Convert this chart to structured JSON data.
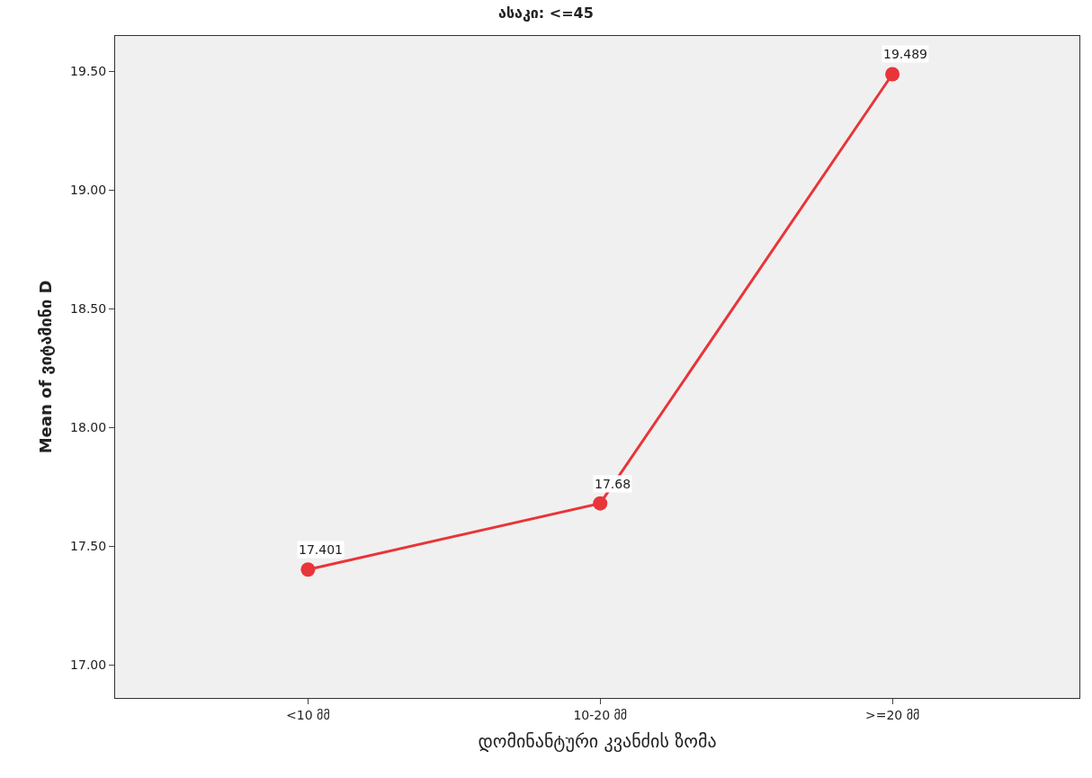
{
  "chart_data": {
    "type": "line",
    "title": "ასაკი: <=45",
    "xlabel": "დომინანტური კვანძის ზომა",
    "ylabel": "Mean of ვიტამინი D",
    "categories": [
      "<10 მმ",
      "10-20 მმ",
      ">=20 მმ"
    ],
    "series": [
      {
        "color": "#e8353a",
        "values": [
          17.401,
          17.68,
          19.489
        ]
      }
    ],
    "ylim": [
      16.86,
      19.65
    ],
    "yticks": [
      {
        "value": 17,
        "label": "17.00"
      },
      {
        "value": 17.5,
        "label": "17.50"
      },
      {
        "value": 18,
        "label": "18.00"
      },
      {
        "value": 18.5,
        "label": "18.50"
      },
      {
        "value": 19,
        "label": "19.00"
      },
      {
        "value": 19.5,
        "label": "19.50"
      }
    ],
    "data_labels": true,
    "marker": "circle",
    "line_style": "solid",
    "grid": false
  }
}
